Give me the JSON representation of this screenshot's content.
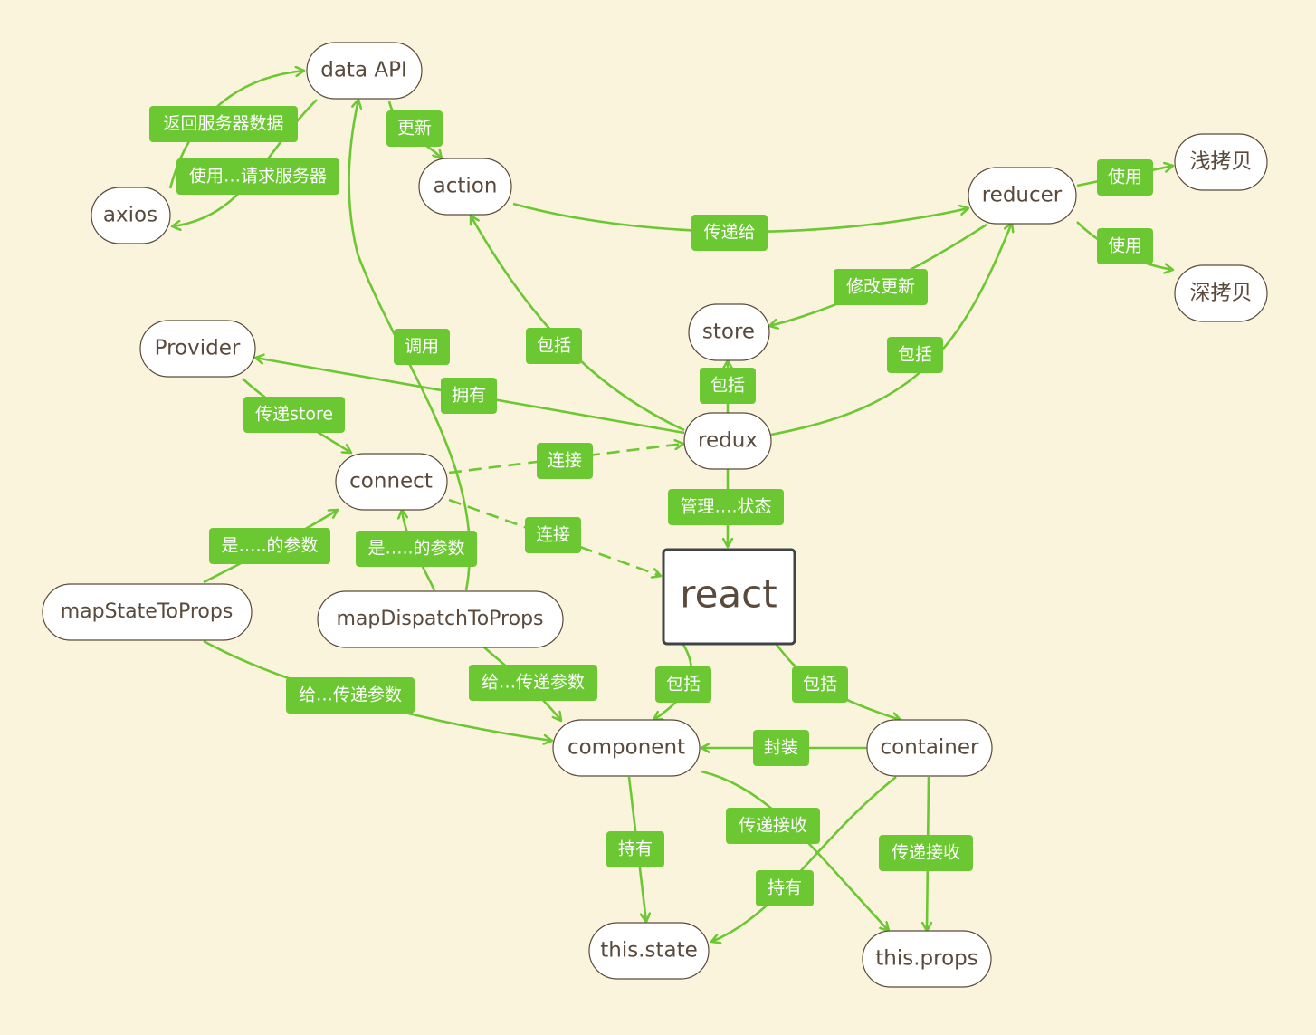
{
  "colors": {
    "background": "#fbf4dc",
    "edge": "#6cc832",
    "label_fill": "#6cc832",
    "label_text": "#ffffff",
    "node_fill": "#ffffff",
    "node_border": "#5a4a3c",
    "root_border": "#3e4347",
    "node_text": "#5a4a3c"
  },
  "nodes": {
    "data_api": "data API",
    "axios": "axios",
    "action": "action",
    "reducer": "reducer",
    "shallow_copy": "浅拷贝",
    "deep_copy": "深拷贝",
    "provider": "Provider",
    "store": "store",
    "redux": "redux",
    "connect": "connect",
    "react": "react",
    "map_state": "mapStateToProps",
    "map_dispatch": "mapDispatchToProps",
    "component": "component",
    "container": "container",
    "this_state": "this.state",
    "this_props": "this.props"
  },
  "edges": {
    "return_data": "返回服务器数据",
    "request_server": "使用…请求服务器",
    "update": "更新",
    "pass_to": "传递给",
    "use_shallow": "使用",
    "use_deep": "使用",
    "modify_update": "修改更新",
    "redux_includes_reducer": "包括",
    "redux_includes_action": "包括",
    "redux_includes_store": "包括",
    "call": "调用",
    "has": "拥有",
    "pass_store": "传递store",
    "connect_redux": "连接",
    "connect_react": "连接",
    "manage_state": "管理….状态",
    "param_state": "是…..的参数",
    "param_dispatch": "是…..的参数",
    "give_params_state": "给…传递参数",
    "give_params_dispatch": "给…传递参数",
    "react_includes_component": "包括",
    "react_includes_container": "包括",
    "wrap": "封装",
    "hold_component": "持有",
    "pass_receive_component": "传递接收",
    "hold_container": "持有",
    "pass_receive_container": "传递接收"
  }
}
